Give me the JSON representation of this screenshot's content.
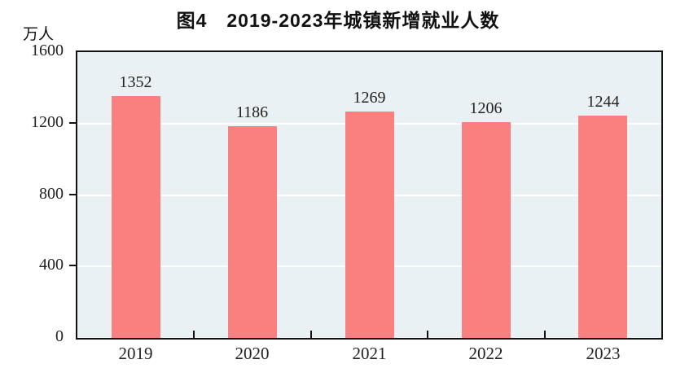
{
  "chart_data": {
    "type": "bar",
    "title": "图4　2019-2023年城镇新增就业人数",
    "unit_label": "万人",
    "categories": [
      "2019",
      "2020",
      "2021",
      "2022",
      "2023"
    ],
    "values": [
      1352,
      1186,
      1269,
      1206,
      1244
    ],
    "ylabel": "万人",
    "xlabel": "",
    "ylim": [
      0,
      1600
    ],
    "yticks": [
      0,
      400,
      800,
      1200,
      1600
    ],
    "grid": "horizontal",
    "legend": "none",
    "colors": {
      "bar_fill": "#FA8080",
      "plot_background": "#EAF1F4",
      "axis": "#111111",
      "gridline": "#FFFFFF",
      "text": "#1a1a1a",
      "page_background": "#FFFFFF"
    }
  }
}
